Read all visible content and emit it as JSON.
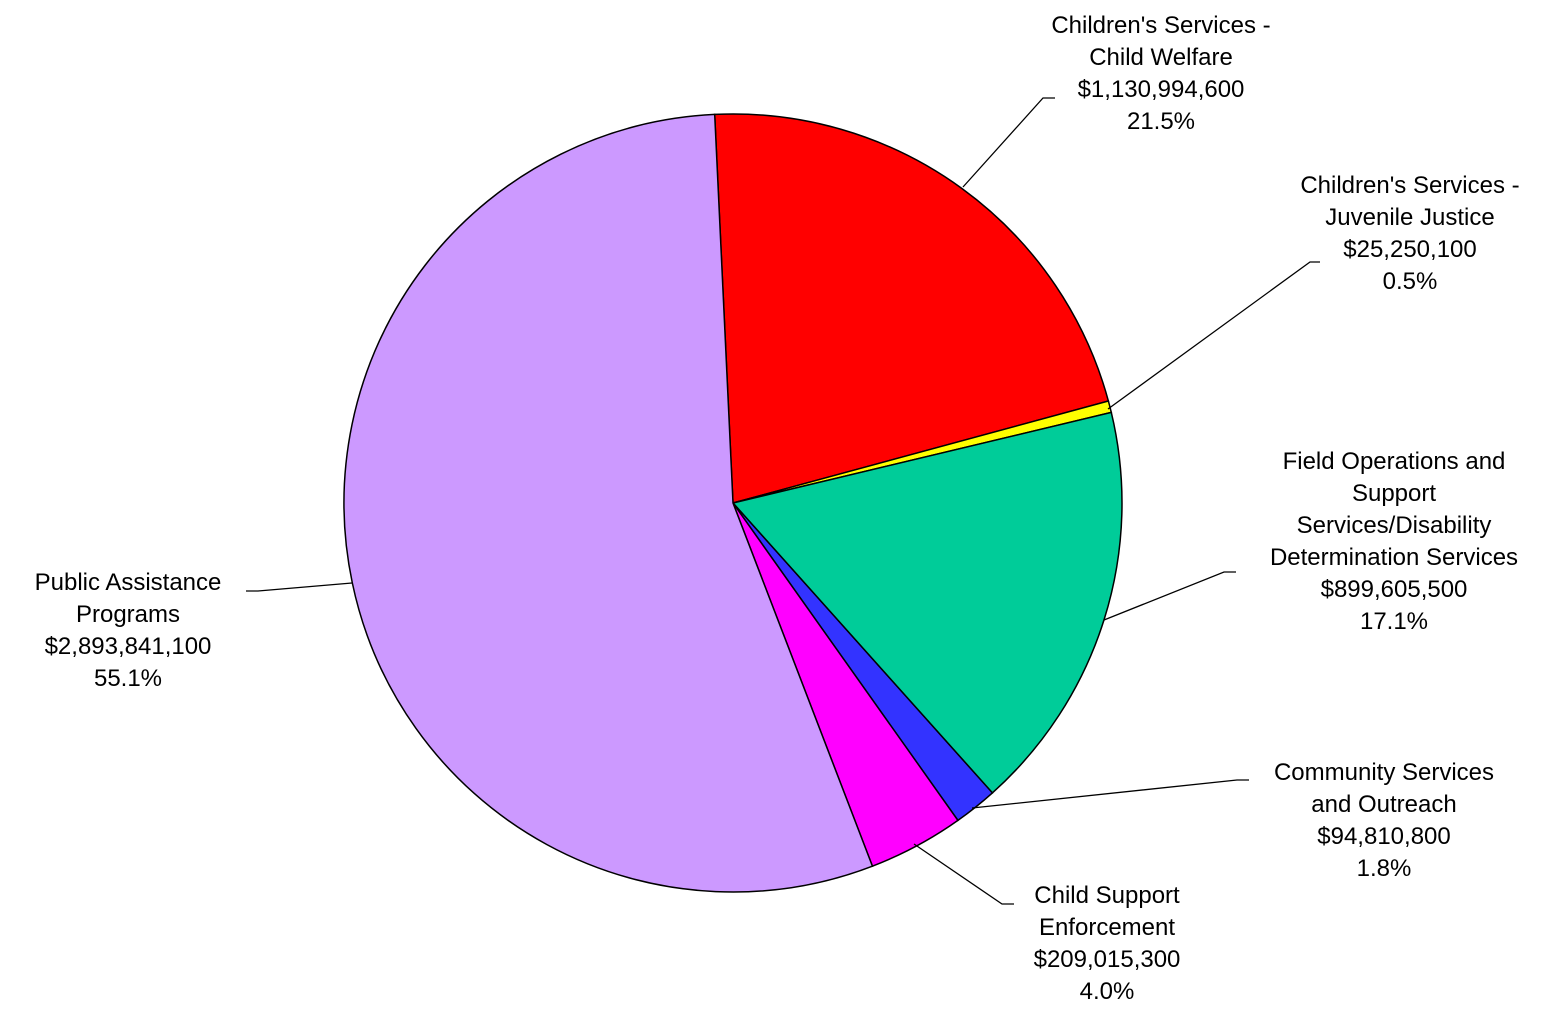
{
  "chart_data": {
    "type": "pie",
    "slices": [
      {
        "name_lines": [
          "Children's Services -",
          "Child Welfare"
        ],
        "value": "$1,130,994,600",
        "percent": "21.5%",
        "amount": 1130994600,
        "color": "#FF0000"
      },
      {
        "name_lines": [
          "Children's Services -",
          "Juvenile Justice"
        ],
        "value": "$25,250,100",
        "percent": "0.5%",
        "amount": 25250100,
        "color": "#FFFF00"
      },
      {
        "name_lines": [
          "Field Operations and",
          "Support",
          "Services/Disability",
          "Determination Services"
        ],
        "value": "$899,605,500",
        "percent": "17.1%",
        "amount": 899605500,
        "color": "#00CC99"
      },
      {
        "name_lines": [
          "Community Services",
          "and Outreach"
        ],
        "value": "$94,810,800",
        "percent": "1.8%",
        "amount": 94810800,
        "color": "#3333FF"
      },
      {
        "name_lines": [
          "Child Support",
          "Enforcement"
        ],
        "value": "$209,015,300",
        "percent": "4.0%",
        "amount": 209015300,
        "color": "#FF00FF"
      },
      {
        "name_lines": [
          "Public Assistance",
          "Programs"
        ],
        "value": "$2,893,841,100",
        "percent": "55.1%",
        "amount": 2893841100,
        "color": "#CC99FF"
      }
    ]
  }
}
